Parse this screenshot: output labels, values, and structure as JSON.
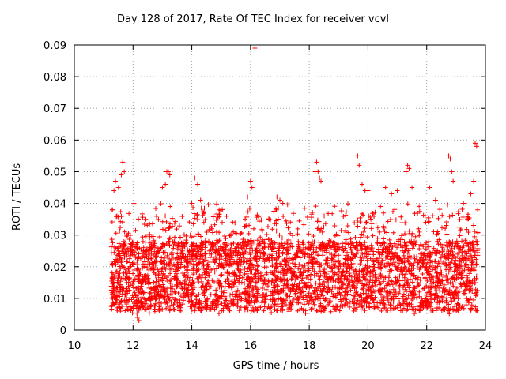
{
  "chart_data": {
    "type": "scatter",
    "title": "Day 128 of 2017, Rate Of TEC Index for receiver vcvl",
    "xlabel": "GPS time / hours",
    "ylabel": "ROTI / TECUs",
    "xlim": [
      10,
      24
    ],
    "ylim": [
      0,
      0.09
    ],
    "xticks": [
      10,
      12,
      14,
      16,
      18,
      20,
      22,
      24
    ],
    "yticks": [
      0,
      0.01,
      0.02,
      0.03,
      0.04,
      0.05,
      0.06,
      0.07,
      0.08,
      0.09
    ],
    "ytick_labels": [
      "0",
      "0.01",
      "0.02",
      "0.03",
      "0.04",
      "0.05",
      "0.06",
      "0.07",
      "0.08",
      "0.09"
    ],
    "grid": true,
    "legend": "none",
    "marker": "+",
    "color": "#ff0000",
    "series": [
      {
        "x_range": [
          11.25,
          23.75
        ],
        "typical_y_range": [
          0.005,
          0.035
        ],
        "points": [
          [
            11.35,
            0.044
          ],
          [
            11.4,
            0.047
          ],
          [
            11.5,
            0.045
          ],
          [
            11.6,
            0.049
          ],
          [
            11.65,
            0.053
          ],
          [
            11.7,
            0.05
          ],
          [
            11.3,
            0.038
          ],
          [
            11.45,
            0.036
          ],
          [
            12.15,
            0.004
          ],
          [
            12.2,
            0.003
          ],
          [
            12.25,
            0.007
          ],
          [
            13.0,
            0.045
          ],
          [
            13.1,
            0.046
          ],
          [
            13.15,
            0.05
          ],
          [
            13.2,
            0.05
          ],
          [
            13.25,
            0.049
          ],
          [
            14.1,
            0.048
          ],
          [
            14.2,
            0.046
          ],
          [
            14.0,
            0.04
          ],
          [
            14.3,
            0.041
          ],
          [
            15.9,
            0.042
          ],
          [
            16.0,
            0.047
          ],
          [
            16.05,
            0.045
          ],
          [
            16.15,
            0.089
          ],
          [
            16.9,
            0.042
          ],
          [
            17.0,
            0.041
          ],
          [
            17.1,
            0.04
          ],
          [
            18.2,
            0.05
          ],
          [
            18.25,
            0.053
          ],
          [
            18.3,
            0.05
          ],
          [
            18.35,
            0.048
          ],
          [
            18.4,
            0.047
          ],
          [
            19.65,
            0.055
          ],
          [
            19.7,
            0.052
          ],
          [
            19.8,
            0.046
          ],
          [
            19.9,
            0.044
          ],
          [
            20.0,
            0.044
          ],
          [
            20.6,
            0.045
          ],
          [
            20.8,
            0.043
          ],
          [
            21.0,
            0.044
          ],
          [
            21.3,
            0.05
          ],
          [
            21.35,
            0.052
          ],
          [
            21.4,
            0.051
          ],
          [
            21.5,
            0.045
          ],
          [
            22.1,
            0.045
          ],
          [
            22.3,
            0.041
          ],
          [
            22.75,
            0.055
          ],
          [
            22.8,
            0.054
          ],
          [
            22.85,
            0.05
          ],
          [
            22.9,
            0.047
          ],
          [
            23.25,
            0.04
          ],
          [
            23.5,
            0.043
          ],
          [
            23.6,
            0.047
          ],
          [
            23.65,
            0.059
          ],
          [
            23.7,
            0.058
          ]
        ]
      }
    ]
  }
}
